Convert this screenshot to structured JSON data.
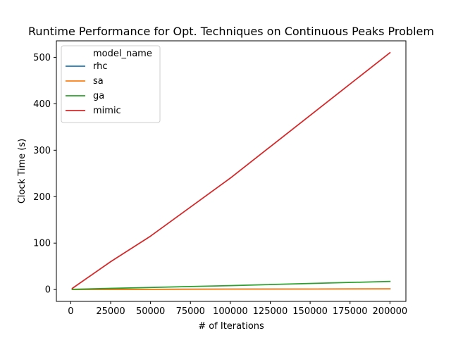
{
  "chart_data": {
    "type": "line",
    "title": "Runtime Performance for Opt. Techniques on Continuous Peaks Problem",
    "xlabel": "# of Iterations",
    "ylabel": "Clock Time (s)",
    "xlim": [
      -9000,
      210000
    ],
    "ylim": [
      -25.5,
      535.5
    ],
    "xticks": [
      0,
      25000,
      50000,
      75000,
      100000,
      125000,
      150000,
      175000,
      200000
    ],
    "yticks": [
      0,
      100,
      200,
      300,
      400,
      500
    ],
    "grid": false,
    "legend": {
      "title": "model_name",
      "placement": "top-left"
    },
    "x": [
      1000,
      25000,
      50000,
      100000,
      200000
    ],
    "series": [
      {
        "name": "rhc",
        "color": "#1f77b4",
        "values": [
          0.1,
          0.3,
          0.5,
          0.8,
          1.5
        ]
      },
      {
        "name": "sa",
        "color": "#ff7f0e",
        "values": [
          0.1,
          0.3,
          0.5,
          0.9,
          1.6
        ]
      },
      {
        "name": "ga",
        "color": "#2ca02c",
        "values": [
          0.5,
          2.5,
          4.5,
          8.5,
          17.5
        ]
      },
      {
        "name": "mimic",
        "color": "#d62728",
        "values": [
          2.5,
          60,
          115,
          240,
          510
        ]
      }
    ]
  }
}
